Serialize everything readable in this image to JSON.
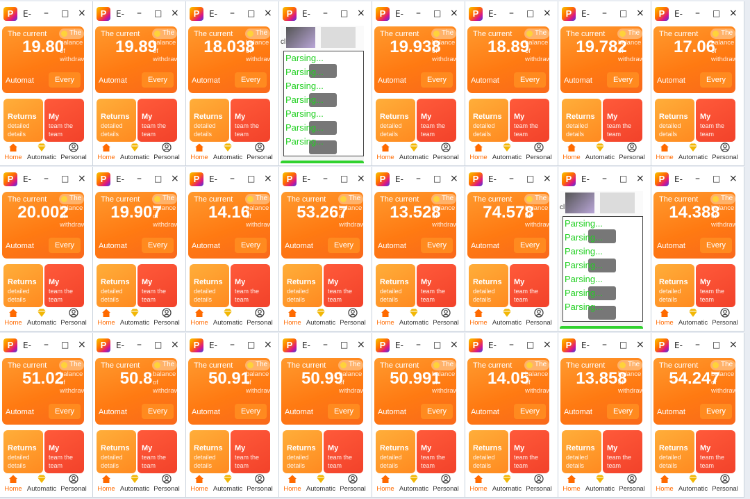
{
  "window_title": "E-",
  "window_controls": {
    "minimize": "–",
    "maximize": "□",
    "close": "×"
  },
  "app_icon_letter": "P",
  "labels": {
    "current_label": "The current",
    "balance_badge": "The",
    "balance_note": "balance of withdrawal",
    "automat": "Automat",
    "every": "Every",
    "returns_title": "Returns",
    "returns_sub1": "detailed",
    "returns_sub2": "details",
    "team_title": "My",
    "team_sub1": "team the",
    "team_sub2": "team"
  },
  "tabs": [
    {
      "icon": "home-icon",
      "label": "Home"
    },
    {
      "icon": "diamond-icon",
      "label": "Automatic"
    },
    {
      "icon": "person-icon",
      "label": "Personal"
    }
  ],
  "parsing_text": "Parsing...",
  "parsing_cl": "cl",
  "colors": {
    "accent_orange": "#ff7a12",
    "tab_active": "#ff6a00",
    "parsing_green": "#22d022"
  },
  "amounts": [
    "19.80",
    "19.89",
    "18.038",
    null,
    "19.938",
    "18.89",
    "19.782",
    "17.06",
    "20.002",
    "19.907",
    "14.16",
    "53.267",
    "13.528",
    "74.578",
    null,
    "14.388",
    "51.02",
    "50.8",
    "50.91",
    "50.99",
    "50.991",
    "14.05",
    "13.858",
    "54.247"
  ]
}
